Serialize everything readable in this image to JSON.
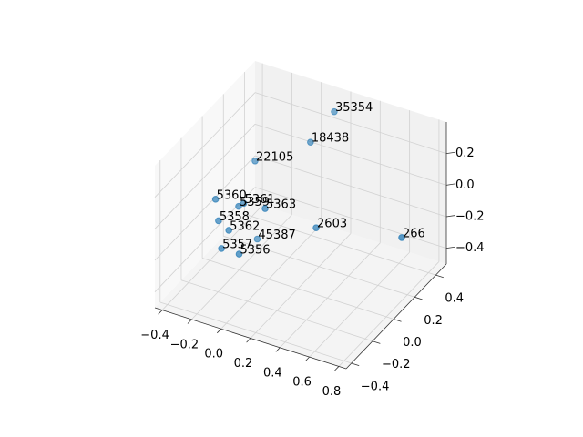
{
  "chart_data": {
    "type": "scatter3d",
    "labels": [
      "35354",
      "18438",
      "22105",
      "5360",
      "5361",
      "5359",
      "5363",
      "5358",
      "5362",
      "2603",
      "266",
      "45387",
      "5357",
      "5356"
    ],
    "x": [
      0.16,
      0.07,
      -0.235,
      -0.36,
      -0.24,
      -0.275,
      -0.095,
      -0.34,
      -0.27,
      0.18,
      0.69,
      -0.22,
      -0.32,
      -0.2
    ],
    "y": [
      0.4,
      0.3,
      0.2,
      0,
      0.1,
      0.1,
      0.1,
      0,
      0,
      0.2,
      0.3,
      0.2,
      0,
      0
    ],
    "z": [
      0.33,
      0.18,
      0.04,
      -0.1,
      -0.16,
      -0.19,
      -0.15,
      -0.23,
      -0.27,
      -0.26,
      -0.24,
      -0.45,
      -0.4,
      -0.4
    ],
    "color": "#1f77b4",
    "xlim": [
      -0.45,
      0.85
    ],
    "ylim": [
      -0.45,
      0.5
    ],
    "zlim": [
      -0.5,
      0.4
    ],
    "xticks": [
      {
        "value": -0.4,
        "label": "−0.4"
      },
      {
        "value": -0.2,
        "label": "−0.2"
      },
      {
        "value": 0,
        "label": "0.0"
      },
      0.2,
      0.4,
      0.6,
      0.8
    ],
    "yticks": [
      {
        "value": -0.4,
        "label": "−0.4"
      },
      {
        "value": -0.2,
        "label": "−0.2"
      },
      {
        "value": 0,
        "label": "0.0"
      },
      0.2,
      0.4
    ],
    "zticks": [
      {
        "value": -0.4,
        "label": "−0.4"
      },
      {
        "value": -0.2,
        "label": "−0.2"
      },
      {
        "value": 0,
        "label": "0.0"
      },
      0.2
    ],
    "grid": true
  }
}
